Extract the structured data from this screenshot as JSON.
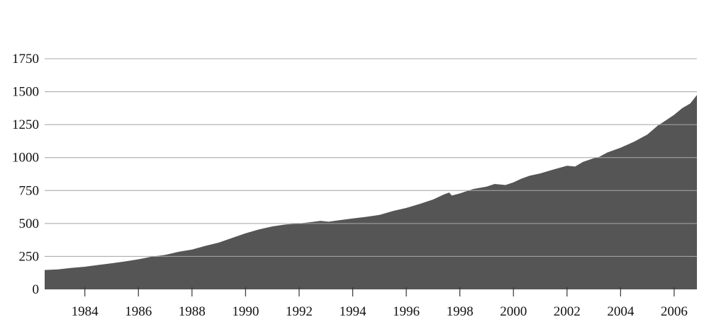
{
  "chart_data": {
    "type": "area",
    "title": "",
    "xlabel": "",
    "ylabel": "",
    "xlim": [
      1982.5,
      2006.85
    ],
    "ylim": [
      0,
      1750
    ],
    "yticks": [
      0,
      250,
      500,
      750,
      1000,
      1250,
      1500,
      1750
    ],
    "xticks": [
      1984,
      1986,
      1988,
      1990,
      1992,
      1994,
      1996,
      1998,
      2000,
      2002,
      2004,
      2006
    ],
    "grid": true,
    "legend": "none",
    "series": [
      {
        "color": "#555555",
        "x": [
          1982.5,
          1983.0,
          1983.5,
          1984.0,
          1984.5,
          1985.0,
          1985.5,
          1986.0,
          1986.5,
          1987.0,
          1987.5,
          1988.0,
          1988.5,
          1989.0,
          1989.5,
          1990.0,
          1990.5,
          1991.0,
          1991.5,
          1992.0,
          1992.5,
          1992.8,
          1993.1,
          1993.5,
          1994.0,
          1994.5,
          1995.0,
          1995.5,
          1996.0,
          1996.5,
          1997.0,
          1997.4,
          1997.6,
          1997.7,
          1998.0,
          1998.5,
          1999.0,
          1999.3,
          1999.7,
          2000.0,
          2000.3,
          2000.6,
          2001.0,
          2001.5,
          2002.0,
          2002.3,
          2002.6,
          2003.0,
          2003.2,
          2003.5,
          2004.0,
          2004.5,
          2005.0,
          2005.4,
          2005.6,
          2006.0,
          2006.3,
          2006.6,
          2006.85
        ],
        "values": [
          147,
          152,
          163,
          172,
          185,
          198,
          212,
          228,
          248,
          262,
          285,
          302,
          330,
          355,
          390,
          425,
          455,
          478,
          493,
          500,
          512,
          520,
          513,
          525,
          538,
          550,
          565,
          595,
          618,
          648,
          682,
          720,
          735,
          712,
          728,
          762,
          780,
          800,
          792,
          812,
          840,
          862,
          880,
          910,
          938,
          932,
          968,
          995,
          1005,
          1038,
          1075,
          1120,
          1175,
          1245,
          1270,
          1325,
          1375,
          1410,
          1475
        ]
      }
    ]
  }
}
